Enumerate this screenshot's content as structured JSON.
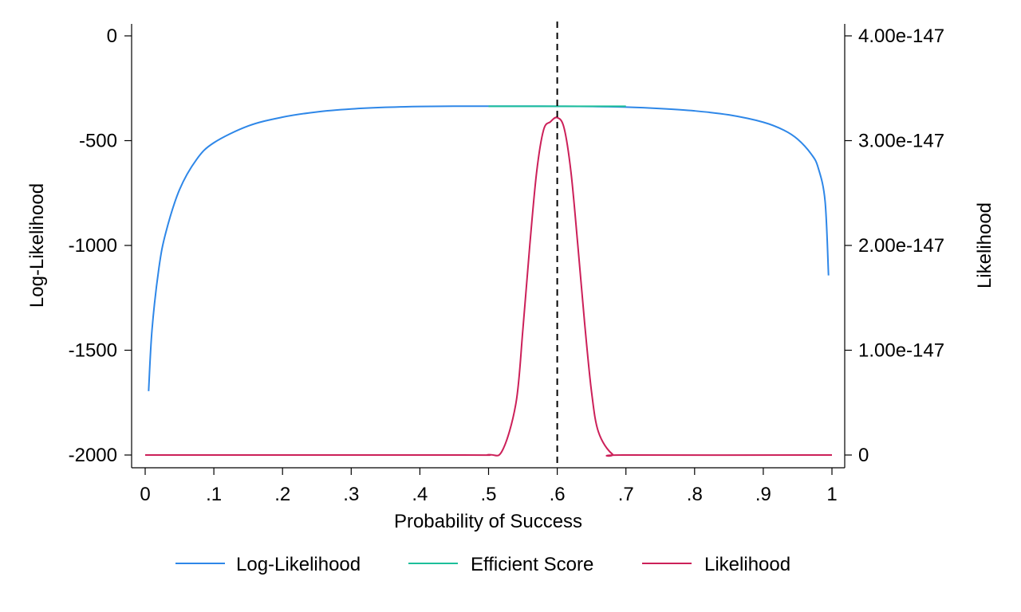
{
  "chart_data": {
    "type": "line",
    "title": "",
    "xlabel": "Probability of Success",
    "ylabel_left": "Log-Likelihood",
    "ylabel_right": "Likelihood",
    "xlim": [
      0,
      1
    ],
    "ylim_left": [
      -2000,
      0
    ],
    "ylim_right": [
      0,
      4e-147
    ],
    "x_ticks": [
      0,
      0.1,
      0.2,
      0.3,
      0.4,
      0.5,
      0.6,
      0.7,
      0.8,
      0.9,
      1
    ],
    "x_tick_labels": [
      "0",
      ".1",
      ".2",
      ".3",
      ".4",
      ".5",
      ".6",
      ".7",
      ".8",
      ".9",
      "1"
    ],
    "y_left_ticks": [
      0,
      -500,
      -1000,
      -1500,
      -2000
    ],
    "y_left_tick_labels": [
      "0",
      "-500",
      "-1000",
      "-1500",
      "-2000"
    ],
    "y_right_ticks": [
      4e-147,
      3e-147,
      2e-147,
      1e-147,
      0
    ],
    "y_right_tick_labels": [
      "4.00e-147",
      "3.00e-147",
      "2.00e-147",
      "1.00e-147",
      "0"
    ],
    "reference_line": {
      "x": 0.6,
      "style": "dashed",
      "color": "#000000"
    },
    "grid": false,
    "legend_position": "bottom",
    "series": [
      {
        "name": "Log-Likelihood",
        "axis": "left",
        "color": "#2e87e8",
        "x": [
          0.005,
          0.01,
          0.02,
          0.03,
          0.05,
          0.075,
          0.1,
          0.15,
          0.2,
          0.25,
          0.3,
          0.35,
          0.4,
          0.45,
          0.5,
          0.55,
          0.6,
          0.65,
          0.7,
          0.75,
          0.8,
          0.85,
          0.9,
          0.93,
          0.95,
          0.97,
          0.98,
          0.99,
          0.995
        ],
        "y": [
          -1695,
          -1401,
          -1108,
          -939,
          -734,
          -589,
          -510,
          -430,
          -388,
          -363,
          -349,
          -341,
          -337,
          -335.5,
          -335.4,
          -335.6,
          -336,
          -337,
          -340,
          -347,
          -358,
          -377,
          -412,
          -450,
          -493,
          -565,
          -630,
          -789,
          -1143
        ]
      },
      {
        "name": "Efficient Score",
        "axis": "left",
        "color": "#1dbf9a",
        "x": [
          0.5,
          0.7
        ],
        "y": [
          -336,
          -336
        ]
      },
      {
        "name": "Likelihood",
        "axis": "right",
        "color": "#cc2059",
        "x": [
          0.0,
          0.45,
          0.5,
          0.52,
          0.54,
          0.55,
          0.56,
          0.57,
          0.58,
          0.59,
          0.6,
          0.61,
          0.62,
          0.63,
          0.64,
          0.65,
          0.66,
          0.68,
          0.7,
          1.0
        ],
        "y": [
          0,
          0,
          2.5e-150,
          4.2e-149,
          5e-148,
          1.2e-147,
          2e-147,
          2.7e-147,
          3.1e-147,
          3.18e-147,
          3.22e-147,
          3.12e-147,
          2.7e-147,
          2e-147,
          1.25e-147,
          6e-148,
          2.2e-148,
          1e-149,
          0,
          0
        ]
      }
    ]
  },
  "legend": {
    "items": [
      {
        "label": "Log-Likelihood",
        "color": "#2e87e8"
      },
      {
        "label": "Efficient Score",
        "color": "#1dbf9a"
      },
      {
        "label": "Likelihood",
        "color": "#cc2059"
      }
    ]
  }
}
